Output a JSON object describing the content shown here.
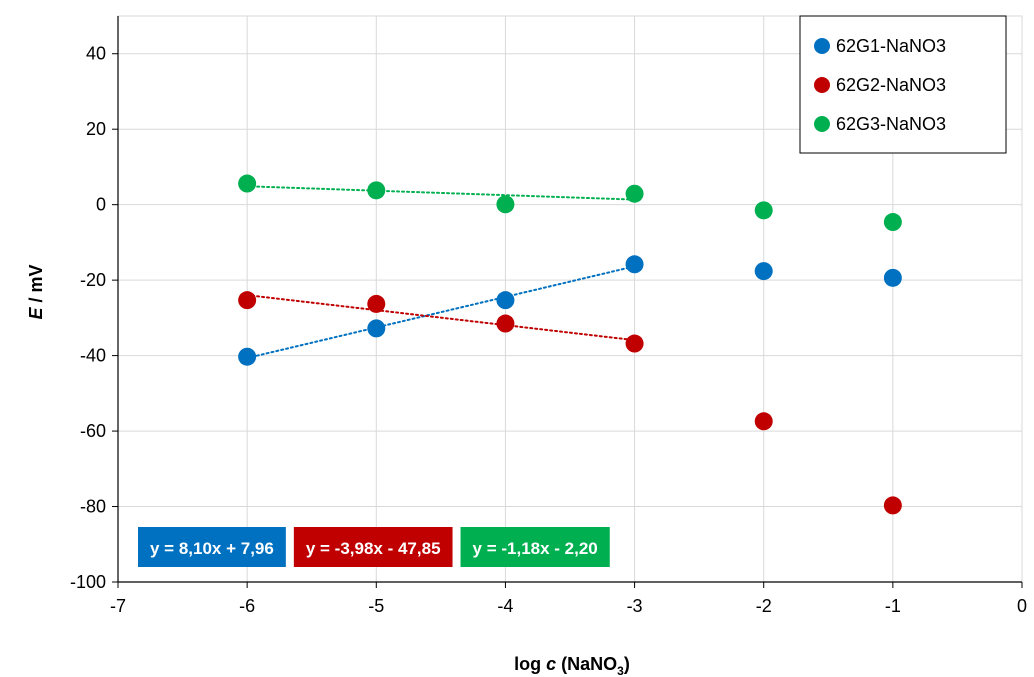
{
  "chart_data": {
    "type": "scatter",
    "xlabel_parts": [
      "log ",
      "c",
      " (NaNO",
      "3",
      ")"
    ],
    "ylabel_parts": [
      "E",
      " / mV"
    ],
    "xlim": [
      -7,
      0
    ],
    "ylim": [
      -100,
      50
    ],
    "x_ticks": [
      -7,
      -6,
      -5,
      -4,
      -3,
      -2,
      -1,
      0
    ],
    "y_ticks": [
      -100,
      -80,
      -60,
      -40,
      -20,
      0,
      20,
      40
    ],
    "grid": true,
    "legend_position": "top-right",
    "series": [
      {
        "name": "62G1-NaNO3",
        "color": "#0070C0",
        "x": [
          -6,
          -5,
          -4,
          -3,
          -2,
          -1
        ],
        "y": [
          -40.3,
          -32.8,
          -25.3,
          -15.8,
          -17.6,
          -19.4
        ],
        "trendline": {
          "x": [
            -6,
            -3
          ],
          "slope": 8.1,
          "intercept": 7.96
        },
        "equation": "y = 8,10x + 7,96"
      },
      {
        "name": "62G2-NaNO3",
        "color": "#C00000",
        "x": [
          -6,
          -5,
          -4,
          -3,
          -2,
          -1
        ],
        "y": [
          -25.3,
          -26.3,
          -31.5,
          -36.8,
          -57.4,
          -79.7
        ],
        "trendline": {
          "x": [
            -6,
            -3
          ],
          "slope": -3.98,
          "intercept": -47.85
        },
        "equation": "y = -3,98x - 47,85"
      },
      {
        "name": "62G3-NaNO3",
        "color": "#00B050",
        "x": [
          -6,
          -5,
          -4,
          -3,
          -2,
          -1
        ],
        "y": [
          5.6,
          3.8,
          0.1,
          2.9,
          -1.5,
          -4.6
        ],
        "trendline": {
          "x": [
            -6,
            -3
          ],
          "slope": -1.18,
          "intercept": -2.2
        },
        "equation": "y = -1,18x - 2,20"
      }
    ]
  }
}
